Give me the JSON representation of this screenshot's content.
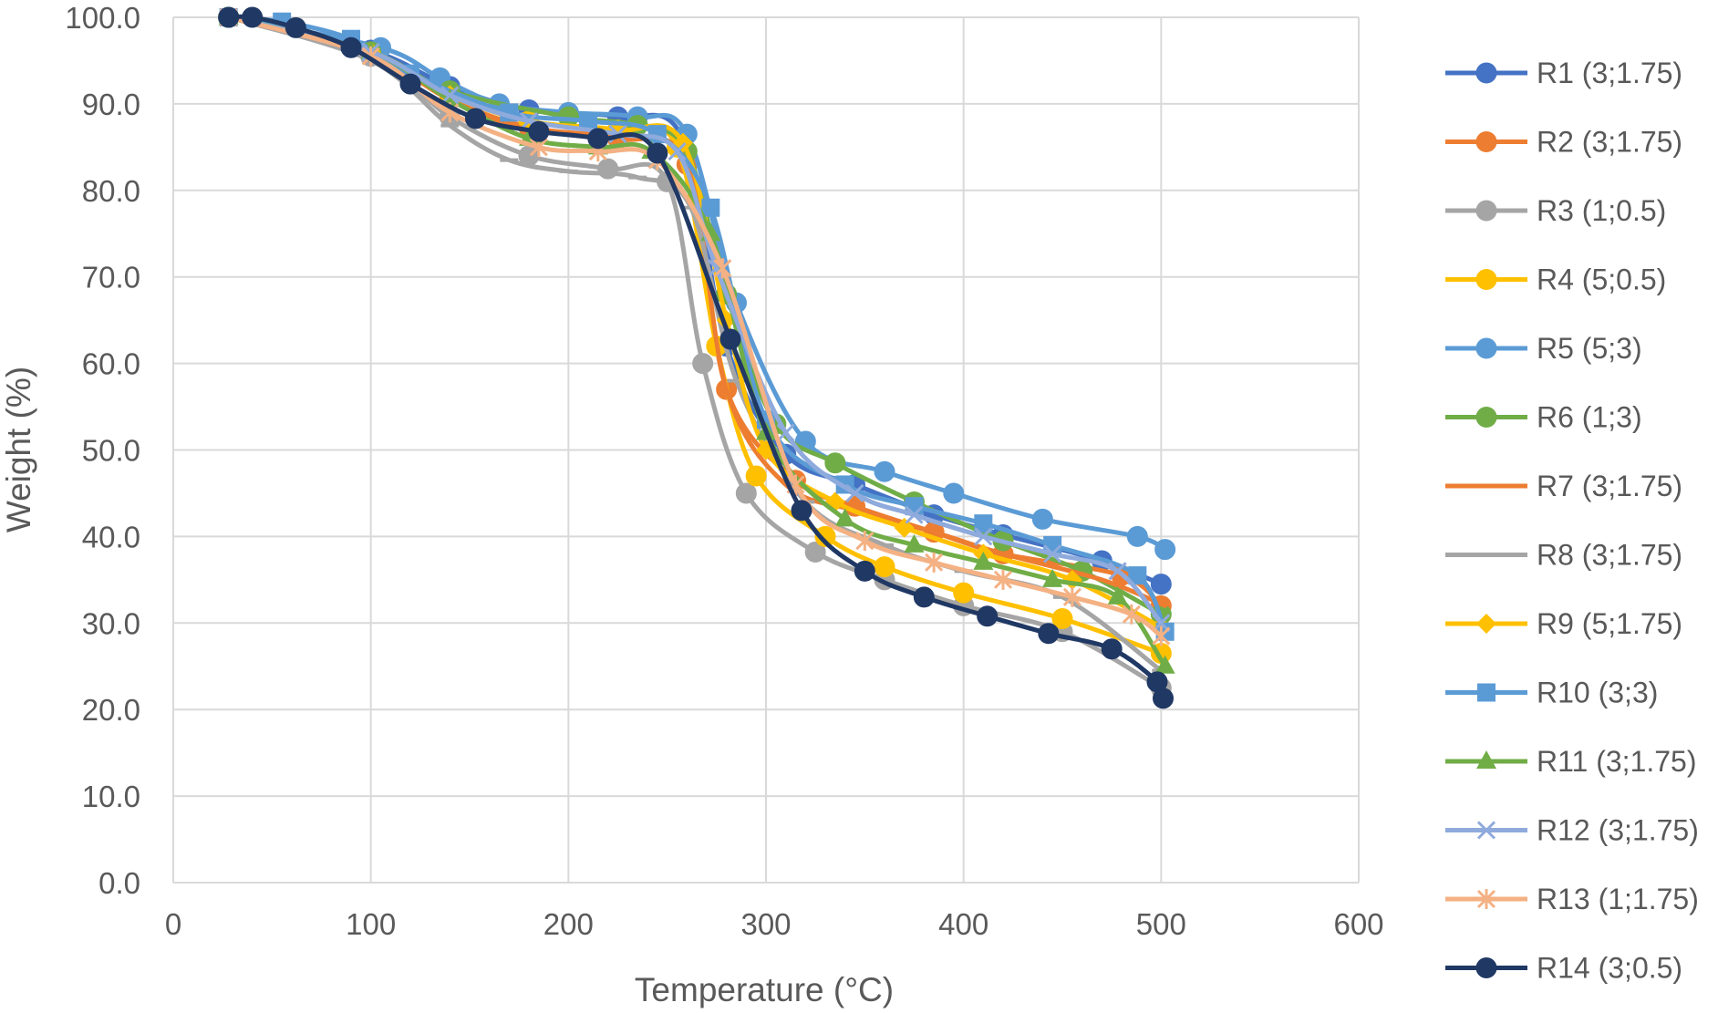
{
  "chart_data": {
    "type": "line",
    "title": "",
    "xlabel": "Temperature (°C)",
    "ylabel": "Weight (%)",
    "xlim": [
      0,
      600
    ],
    "ylim": [
      0,
      100
    ],
    "xticks": [
      0,
      100,
      200,
      300,
      400,
      500,
      600
    ],
    "yticks": [
      0,
      10,
      20,
      30,
      40,
      50,
      60,
      70,
      80,
      90,
      100
    ],
    "ytick_labels": [
      "0.0",
      "10.0",
      "20.0",
      "30.0",
      "40.0",
      "50.0",
      "60.0",
      "70.0",
      "80.0",
      "90.0",
      "100.0"
    ],
    "grid": true,
    "legend_position": "right",
    "series": [
      {
        "name": "R1 (3;1.75)",
        "color": "#4472C4",
        "marker": "circle",
        "x": [
          28,
          100,
          140,
          180,
          225,
          258,
          280,
          310,
          345,
          385,
          420,
          470,
          500
        ],
        "y": [
          100,
          96.2,
          92.0,
          89.3,
          88.5,
          86.0,
          62.0,
          49.5,
          46.0,
          42.5,
          40.2,
          37.2,
          34.5
        ]
      },
      {
        "name": "R2 (3;1.75)",
        "color": "#ED7D31",
        "marker": "circle",
        "x": [
          28,
          100,
          140,
          180,
          225,
          260,
          280,
          315,
          345,
          385,
          420,
          480,
          500
        ],
        "y": [
          100,
          95.8,
          90.5,
          87.3,
          86.0,
          83.0,
          57.0,
          46.5,
          43.5,
          40.5,
          38.0,
          35.5,
          32.0
        ]
      },
      {
        "name": "R3 (1;0.5)",
        "color": "#A5A5A5",
        "marker": "circle",
        "x": [
          28,
          100,
          140,
          180,
          220,
          250,
          268,
          290,
          325,
          360,
          400,
          450,
          500
        ],
        "y": [
          100,
          95.5,
          88.5,
          84.0,
          82.5,
          81.0,
          60.0,
          45.0,
          38.2,
          35.0,
          32.0,
          29.0,
          22.5
        ]
      },
      {
        "name": "R4 (5;0.5)",
        "color": "#FFC000",
        "marker": "circle",
        "x": [
          28,
          100,
          140,
          180,
          225,
          255,
          275,
          295,
          330,
          360,
          400,
          450,
          500
        ],
        "y": [
          100,
          96.0,
          91.0,
          88.0,
          87.0,
          85.0,
          62.0,
          47.0,
          40.0,
          36.5,
          33.5,
          30.5,
          26.5
        ]
      },
      {
        "name": "R5 (5;3)",
        "color": "#5B9BD5",
        "marker": "circle",
        "x": [
          28,
          105,
          135,
          165,
          200,
          235,
          260,
          285,
          320,
          360,
          395,
          440,
          488,
          502
        ],
        "y": [
          100,
          96.5,
          93.0,
          90.0,
          89.0,
          88.5,
          86.5,
          67.0,
          51.0,
          47.5,
          45.0,
          42.0,
          40.0,
          38.5
        ]
      },
      {
        "name": "R6 (1;3)",
        "color": "#70AD47",
        "marker": "circle",
        "x": [
          28,
          100,
          140,
          200,
          235,
          260,
          280,
          305,
          335,
          375,
          420,
          460,
          500
        ],
        "y": [
          100,
          96.0,
          91.5,
          88.5,
          87.5,
          84.5,
          68.0,
          53.0,
          48.5,
          44.0,
          39.5,
          36.0,
          31.0
        ]
      },
      {
        "name": "R7 (3;1.75)",
        "color": "#ED7D31",
        "marker": "none",
        "x": [
          28,
          100,
          140,
          180,
          225,
          260,
          280,
          310,
          345,
          385,
          420,
          470,
          502
        ],
        "y": [
          100,
          95.6,
          90.5,
          87.0,
          86.0,
          83.0,
          57.0,
          46.0,
          43.0,
          40.5,
          38.0,
          35.0,
          32.0
        ]
      },
      {
        "name": "R8 (3;1.75)",
        "color": "#A5A5A5",
        "marker": "dash",
        "x": [
          28,
          100,
          140,
          170,
          200,
          235,
          262,
          285,
          320,
          360,
          400,
          450,
          500
        ],
        "y": [
          100,
          95.0,
          87.5,
          83.5,
          82.2,
          81.5,
          78.0,
          58.0,
          44.0,
          39.0,
          36.0,
          33.0,
          24.5
        ]
      },
      {
        "name": "R9 (5;1.75)",
        "color": "#FFC000",
        "marker": "diamond",
        "x": [
          28,
          100,
          140,
          180,
          225,
          258,
          280,
          300,
          335,
          370,
          410,
          455,
          500
        ],
        "y": [
          100,
          96.0,
          91.0,
          88.0,
          87.0,
          85.5,
          65.0,
          50.0,
          44.0,
          41.0,
          38.0,
          35.0,
          29.5
        ]
      },
      {
        "name": "R10 (3;3)",
        "color": "#5B9BD5",
        "marker": "square",
        "x": [
          28,
          55,
          90,
          120,
          170,
          210,
          245,
          272,
          300,
          340,
          375,
          410,
          445,
          488,
          502
        ],
        "y": [
          100,
          99.5,
          97.5,
          93.5,
          89.0,
          88.0,
          86.5,
          78.0,
          53.5,
          46.0,
          43.5,
          41.5,
          39.0,
          35.5,
          29.0
        ]
      },
      {
        "name": "R11 (3;1.75)",
        "color": "#70AD47",
        "marker": "triangle",
        "x": [
          28,
          100,
          140,
          180,
          215,
          242,
          272,
          300,
          340,
          375,
          410,
          445,
          478,
          502
        ],
        "y": [
          100,
          96.0,
          90.5,
          86.0,
          85.0,
          84.5,
          75.0,
          52.0,
          42.0,
          39.0,
          37.0,
          35.0,
          33.0,
          25.0
        ]
      },
      {
        "name": "R12 (3;1.75)",
        "color": "#8FAADC",
        "marker": "x",
        "x": [
          28,
          100,
          140,
          180,
          225,
          255,
          275,
          310,
          345,
          375,
          410,
          445,
          478,
          500
        ],
        "y": [
          100,
          96.0,
          91.0,
          88.0,
          86.5,
          84.5,
          71.0,
          52.0,
          45.0,
          42.5,
          40.0,
          38.0,
          36.0,
          30.0
        ]
      },
      {
        "name": "R13 (1;1.75)",
        "color": "#F4B183",
        "marker": "asterisk",
        "x": [
          28,
          100,
          140,
          185,
          215,
          245,
          278,
          315,
          350,
          385,
          420,
          455,
          485,
          500
        ],
        "y": [
          100,
          95.5,
          89.0,
          85.0,
          84.5,
          83.5,
          71.0,
          46.0,
          39.5,
          37.0,
          35.0,
          33.0,
          31.0,
          28.5
        ]
      },
      {
        "name": "R14 (3;0.5)",
        "color": "#203864",
        "marker": "circle",
        "x": [
          28,
          40,
          62,
          90,
          120,
          153,
          185,
          215,
          245,
          282,
          318,
          350,
          380,
          412,
          443,
          475,
          498,
          501
        ],
        "y": [
          100,
          100,
          98.8,
          96.5,
          92.3,
          88.3,
          86.8,
          86.0,
          84.3,
          62.8,
          43.0,
          36.0,
          33.0,
          30.8,
          28.8,
          27.0,
          23.2,
          21.3
        ]
      }
    ]
  }
}
